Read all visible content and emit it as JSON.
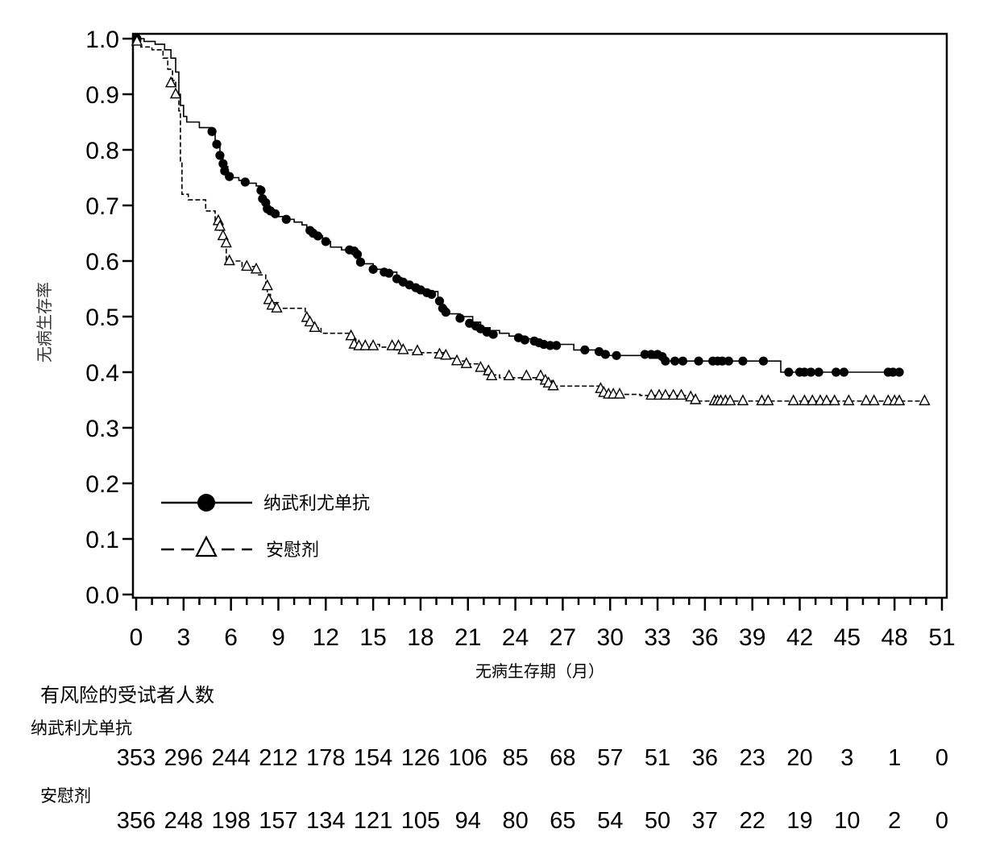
{
  "chart_data": {
    "type": "line",
    "title": "",
    "xlabel": "无病生存期（月）",
    "ylabel": "无病生存率",
    "xlim": [
      0,
      51
    ],
    "ylim": [
      0,
      1.0
    ],
    "x_ticks": [
      "0",
      "3",
      "6",
      "9",
      "12",
      "15",
      "18",
      "21",
      "24",
      "27",
      "30",
      "33",
      "36",
      "39",
      "42",
      "45",
      "48",
      "51"
    ],
    "y_ticks": [
      "0.0",
      "0.1",
      "0.2",
      "0.3",
      "0.4",
      "0.5",
      "0.6",
      "0.7",
      "0.8",
      "0.9",
      "1.0"
    ],
    "legend_position": "lower-left",
    "series": [
      {
        "name": "纳武利尤单抗",
        "line_style": "solid",
        "marker": "filled-circle",
        "steps": [
          [
            0,
            1.0
          ],
          [
            0.5,
            0.995
          ],
          [
            1.2,
            0.99
          ],
          [
            1.8,
            0.98
          ],
          [
            2.2,
            0.965
          ],
          [
            2.5,
            0.94
          ],
          [
            2.7,
            0.9
          ],
          [
            2.8,
            0.88
          ],
          [
            3.0,
            0.86
          ],
          [
            3.2,
            0.85
          ],
          [
            4.0,
            0.84
          ],
          [
            4.8,
            0.83
          ],
          [
            5.0,
            0.81
          ],
          [
            5.3,
            0.79
          ],
          [
            5.5,
            0.77
          ],
          [
            5.8,
            0.75
          ],
          [
            6.5,
            0.745
          ],
          [
            7.0,
            0.74
          ],
          [
            7.6,
            0.735
          ],
          [
            7.9,
            0.725
          ],
          [
            8.0,
            0.715
          ],
          [
            8.2,
            0.705
          ],
          [
            8.3,
            0.695
          ],
          [
            8.6,
            0.685
          ],
          [
            9.0,
            0.68
          ],
          [
            9.5,
            0.675
          ],
          [
            10.0,
            0.67
          ],
          [
            10.5,
            0.665
          ],
          [
            10.8,
            0.655
          ],
          [
            11.2,
            0.645
          ],
          [
            11.8,
            0.635
          ],
          [
            12.3,
            0.625
          ],
          [
            13.0,
            0.62
          ],
          [
            13.5,
            0.615
          ],
          [
            13.9,
            0.605
          ],
          [
            14.2,
            0.595
          ],
          [
            15.0,
            0.585
          ],
          [
            15.7,
            0.58
          ],
          [
            16.5,
            0.57
          ],
          [
            16.8,
            0.56
          ],
          [
            17.3,
            0.555
          ],
          [
            17.8,
            0.55
          ],
          [
            18.3,
            0.545
          ],
          [
            19.1,
            0.53
          ],
          [
            19.4,
            0.515
          ],
          [
            19.7,
            0.505
          ],
          [
            20.5,
            0.5
          ],
          [
            21.3,
            0.49
          ],
          [
            21.8,
            0.48
          ],
          [
            22.4,
            0.475
          ],
          [
            23.0,
            0.47
          ],
          [
            23.6,
            0.465
          ],
          [
            24.5,
            0.46
          ],
          [
            25.3,
            0.455
          ],
          [
            25.9,
            0.45
          ],
          [
            27.7,
            0.44
          ],
          [
            29.4,
            0.435
          ],
          [
            29.7,
            0.43
          ],
          [
            32.5,
            0.425
          ],
          [
            33.3,
            0.42
          ],
          [
            40.8,
            0.4
          ],
          [
            48.4,
            0.4
          ]
        ],
        "censored": [
          [
            0.05,
            1.0
          ],
          [
            4.8,
            0.833
          ],
          [
            5.1,
            0.81
          ],
          [
            5.3,
            0.79
          ],
          [
            5.5,
            0.775
          ],
          [
            5.6,
            0.762
          ],
          [
            5.9,
            0.752
          ],
          [
            6.9,
            0.742
          ],
          [
            7.9,
            0.727
          ],
          [
            8.0,
            0.712
          ],
          [
            8.2,
            0.705
          ],
          [
            8.3,
            0.694
          ],
          [
            8.5,
            0.69
          ],
          [
            8.8,
            0.685
          ],
          [
            9.5,
            0.675
          ],
          [
            11.0,
            0.655
          ],
          [
            11.2,
            0.65
          ],
          [
            11.5,
            0.645
          ],
          [
            12.0,
            0.635
          ],
          [
            13.5,
            0.62
          ],
          [
            13.8,
            0.618
          ],
          [
            14.0,
            0.612
          ],
          [
            14.2,
            0.598
          ],
          [
            15.0,
            0.585
          ],
          [
            15.7,
            0.58
          ],
          [
            16.0,
            0.578
          ],
          [
            16.5,
            0.568
          ],
          [
            16.9,
            0.562
          ],
          [
            17.3,
            0.557
          ],
          [
            17.7,
            0.552
          ],
          [
            18.0,
            0.548
          ],
          [
            18.4,
            0.543
          ],
          [
            18.7,
            0.54
          ],
          [
            19.2,
            0.528
          ],
          [
            19.4,
            0.515
          ],
          [
            19.6,
            0.508
          ],
          [
            20.5,
            0.497
          ],
          [
            21.1,
            0.488
          ],
          [
            21.5,
            0.483
          ],
          [
            21.8,
            0.478
          ],
          [
            22.2,
            0.472
          ],
          [
            22.6,
            0.468
          ],
          [
            24.2,
            0.462
          ],
          [
            24.6,
            0.458
          ],
          [
            25.2,
            0.456
          ],
          [
            25.5,
            0.453
          ],
          [
            25.8,
            0.45
          ],
          [
            26.2,
            0.448
          ],
          [
            26.6,
            0.448
          ],
          [
            28.4,
            0.44
          ],
          [
            29.3,
            0.437
          ],
          [
            29.7,
            0.432
          ],
          [
            30.4,
            0.43
          ],
          [
            32.2,
            0.432
          ],
          [
            32.6,
            0.432
          ],
          [
            33.0,
            0.432
          ],
          [
            33.3,
            0.428
          ],
          [
            33.5,
            0.42
          ],
          [
            34.1,
            0.42
          ],
          [
            34.6,
            0.42
          ],
          [
            35.6,
            0.42
          ],
          [
            36.5,
            0.42
          ],
          [
            36.8,
            0.42
          ],
          [
            37.1,
            0.42
          ],
          [
            37.5,
            0.42
          ],
          [
            38.4,
            0.42
          ],
          [
            39.7,
            0.42
          ],
          [
            41.3,
            0.4
          ],
          [
            42.0,
            0.4
          ],
          [
            42.3,
            0.4
          ],
          [
            42.7,
            0.4
          ],
          [
            43.2,
            0.4
          ],
          [
            44.3,
            0.4
          ],
          [
            44.8,
            0.4
          ],
          [
            47.6,
            0.4
          ],
          [
            47.9,
            0.4
          ],
          [
            48.3,
            0.4
          ]
        ]
      },
      {
        "name": "安慰剂",
        "line_style": "dashed",
        "marker": "open-triangle",
        "steps": [
          [
            0,
            0.995
          ],
          [
            0.3,
            0.985
          ],
          [
            1.0,
            0.98
          ],
          [
            1.7,
            0.965
          ],
          [
            2.0,
            0.945
          ],
          [
            2.3,
            0.925
          ],
          [
            2.5,
            0.9
          ],
          [
            2.7,
            0.87
          ],
          [
            2.8,
            0.78
          ],
          [
            2.9,
            0.72
          ],
          [
            3.3,
            0.71
          ],
          [
            4.4,
            0.69
          ],
          [
            5.0,
            0.67
          ],
          [
            5.3,
            0.655
          ],
          [
            5.5,
            0.64
          ],
          [
            5.7,
            0.6
          ],
          [
            6.7,
            0.59
          ],
          [
            7.7,
            0.575
          ],
          [
            8.2,
            0.555
          ],
          [
            8.3,
            0.54
          ],
          [
            8.5,
            0.525
          ],
          [
            9.0,
            0.515
          ],
          [
            10.7,
            0.495
          ],
          [
            11.0,
            0.485
          ],
          [
            11.3,
            0.48
          ],
          [
            11.7,
            0.47
          ],
          [
            13.7,
            0.46
          ],
          [
            13.9,
            0.45
          ],
          [
            15.4,
            0.445
          ],
          [
            16.5,
            0.44
          ],
          [
            17.5,
            0.435
          ],
          [
            19.6,
            0.425
          ],
          [
            20.3,
            0.42
          ],
          [
            20.8,
            0.415
          ],
          [
            21.7,
            0.405
          ],
          [
            22.2,
            0.395
          ],
          [
            23.0,
            0.39
          ],
          [
            25.6,
            0.385
          ],
          [
            26.3,
            0.375
          ],
          [
            29.3,
            0.365
          ],
          [
            29.5,
            0.36
          ],
          [
            31.9,
            0.358
          ],
          [
            35.2,
            0.348
          ],
          [
            37.4,
            0.348
          ],
          [
            50.0,
            0.348
          ]
        ],
        "censored": [
          [
            0.05,
            0.995
          ],
          [
            2.2,
            0.92
          ],
          [
            2.5,
            0.9
          ],
          [
            5.2,
            0.672
          ],
          [
            5.3,
            0.662
          ],
          [
            5.5,
            0.645
          ],
          [
            5.7,
            0.632
          ],
          [
            5.9,
            0.6
          ],
          [
            7.0,
            0.59
          ],
          [
            7.6,
            0.585
          ],
          [
            8.3,
            0.555
          ],
          [
            8.4,
            0.53
          ],
          [
            8.6,
            0.52
          ],
          [
            8.9,
            0.515
          ],
          [
            10.8,
            0.498
          ],
          [
            11.0,
            0.49
          ],
          [
            11.3,
            0.48
          ],
          [
            13.6,
            0.465
          ],
          [
            13.8,
            0.45
          ],
          [
            14.1,
            0.447
          ],
          [
            14.5,
            0.447
          ],
          [
            15.0,
            0.447
          ],
          [
            16.2,
            0.447
          ],
          [
            16.6,
            0.447
          ],
          [
            16.9,
            0.44
          ],
          [
            17.8,
            0.438
          ],
          [
            19.2,
            0.432
          ],
          [
            19.6,
            0.43
          ],
          [
            20.3,
            0.42
          ],
          [
            20.9,
            0.415
          ],
          [
            21.8,
            0.408
          ],
          [
            22.3,
            0.402
          ],
          [
            22.5,
            0.393
          ],
          [
            23.6,
            0.393
          ],
          [
            24.7,
            0.393
          ],
          [
            25.6,
            0.393
          ],
          [
            25.9,
            0.385
          ],
          [
            26.1,
            0.38
          ],
          [
            26.4,
            0.375
          ],
          [
            29.4,
            0.37
          ],
          [
            29.6,
            0.363
          ],
          [
            29.9,
            0.36
          ],
          [
            30.2,
            0.36
          ],
          [
            30.6,
            0.36
          ],
          [
            32.6,
            0.358
          ],
          [
            33.1,
            0.358
          ],
          [
            33.5,
            0.358
          ],
          [
            34.0,
            0.358
          ],
          [
            34.5,
            0.358
          ],
          [
            35.1,
            0.355
          ],
          [
            35.4,
            0.35
          ],
          [
            36.6,
            0.348
          ],
          [
            36.8,
            0.348
          ],
          [
            37.0,
            0.348
          ],
          [
            37.3,
            0.348
          ],
          [
            37.6,
            0.348
          ],
          [
            38.4,
            0.348
          ],
          [
            39.6,
            0.348
          ],
          [
            40.0,
            0.348
          ],
          [
            41.6,
            0.348
          ],
          [
            42.3,
            0.348
          ],
          [
            42.8,
            0.348
          ],
          [
            43.3,
            0.348
          ],
          [
            43.7,
            0.348
          ],
          [
            44.2,
            0.348
          ],
          [
            45.1,
            0.348
          ],
          [
            46.2,
            0.348
          ],
          [
            46.7,
            0.348
          ],
          [
            47.6,
            0.348
          ],
          [
            48.0,
            0.348
          ],
          [
            48.3,
            0.348
          ],
          [
            49.9,
            0.348
          ]
        ]
      }
    ]
  },
  "risk_table": {
    "title": "有风险的受试者人数",
    "rows": [
      {
        "label": "纳武利尤单抗",
        "values": [
          "353",
          "296",
          "244",
          "212",
          "178",
          "154",
          "126",
          "106",
          "85",
          "68",
          "57",
          "51",
          "36",
          "23",
          "20",
          "3",
          "1",
          "0"
        ]
      },
      {
        "label": "安慰剂",
        "values": [
          "356",
          "248",
          "198",
          "157",
          "134",
          "121",
          "105",
          "94",
          "80",
          "65",
          "54",
          "50",
          "37",
          "22",
          "19",
          "10",
          "2",
          "0"
        ]
      }
    ]
  }
}
